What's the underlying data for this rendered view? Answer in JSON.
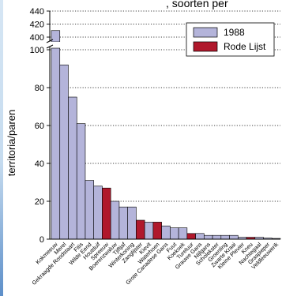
{
  "chart_data": {
    "type": "bar",
    "title_fragment": ", soorten per",
    "ylabel": "territoria/paren",
    "y_axis_broken": true,
    "ylim_lower": [
      0,
      100
    ],
    "ylim_upper": [
      400,
      440
    ],
    "yticks_lower": [
      "0",
      "20",
      "40",
      "60",
      "80",
      "100"
    ],
    "yticks_upper": [
      "400",
      "420",
      "440"
    ],
    "grid": "horizontal dotted",
    "legend_position": "top-right",
    "colors": {
      "1988": "#b4b4da",
      "Rode Lijst": "#b0182c"
    },
    "series": [
      {
        "name": "1988",
        "color": "#b4b4da"
      },
      {
        "name": "Rode Lijst",
        "color": "#b0182c"
      }
    ],
    "categories": [
      "Kokmeeuw",
      "Merel",
      "Gekraagde Roodstaart",
      "Fitis",
      "Wilde Eend",
      "Houtduif",
      "Spreeuw",
      "Boerenzwaluw",
      "Tjiftjaf",
      "Winterkoning",
      "Zanglijster",
      "Kievit",
      "Waterhoen",
      "Grote Canadese Gans",
      "Fuut",
      "Koekoek",
      "Tureluur",
      "Grauwe Gans",
      "Nijlgans",
      "Scholekster",
      "Groenling",
      "Zwarte Kraai",
      "Kleine Plevier",
      "Kneu",
      "Nachtegaal",
      "Graspieper",
      "Veldleeuwerik"
    ],
    "category_labels": [
      "Kokmeeuw",
      "Merel",
      "Gekraagde Roodstaart",
      "Fitis",
      "Wilde Eend",
      "Houtduif",
      "Spreeuw",
      "Boerenzwaluw",
      "Tjiftjaf",
      "Winterkoning",
      "Zanglijster",
      "Kievit",
      "Waterhoen",
      "Grote Canadese Gans",
      "Fuut",
      "Koekoek",
      "Tureluur",
      "Grauwe Gans",
      "Nijlgans",
      "Scholekster",
      "Groenling",
      "Zwarte Kraai",
      "Kleine Plevier",
      "Kneu",
      "Nachtegaal",
      "Graspieper",
      "Veldleeuwerik"
    ],
    "values": [
      410,
      92,
      75,
      61,
      31,
      28,
      27,
      20,
      17,
      17,
      10,
      9,
      9,
      7,
      6,
      6,
      3,
      3,
      2,
      2,
      2,
      2,
      1,
      1,
      1,
      0.6,
      0.4
    ],
    "rode_lijst": [
      false,
      false,
      false,
      false,
      false,
      false,
      true,
      false,
      false,
      false,
      true,
      false,
      true,
      false,
      false,
      false,
      true,
      false,
      false,
      false,
      false,
      false,
      false,
      true,
      false,
      false,
      false
    ]
  }
}
